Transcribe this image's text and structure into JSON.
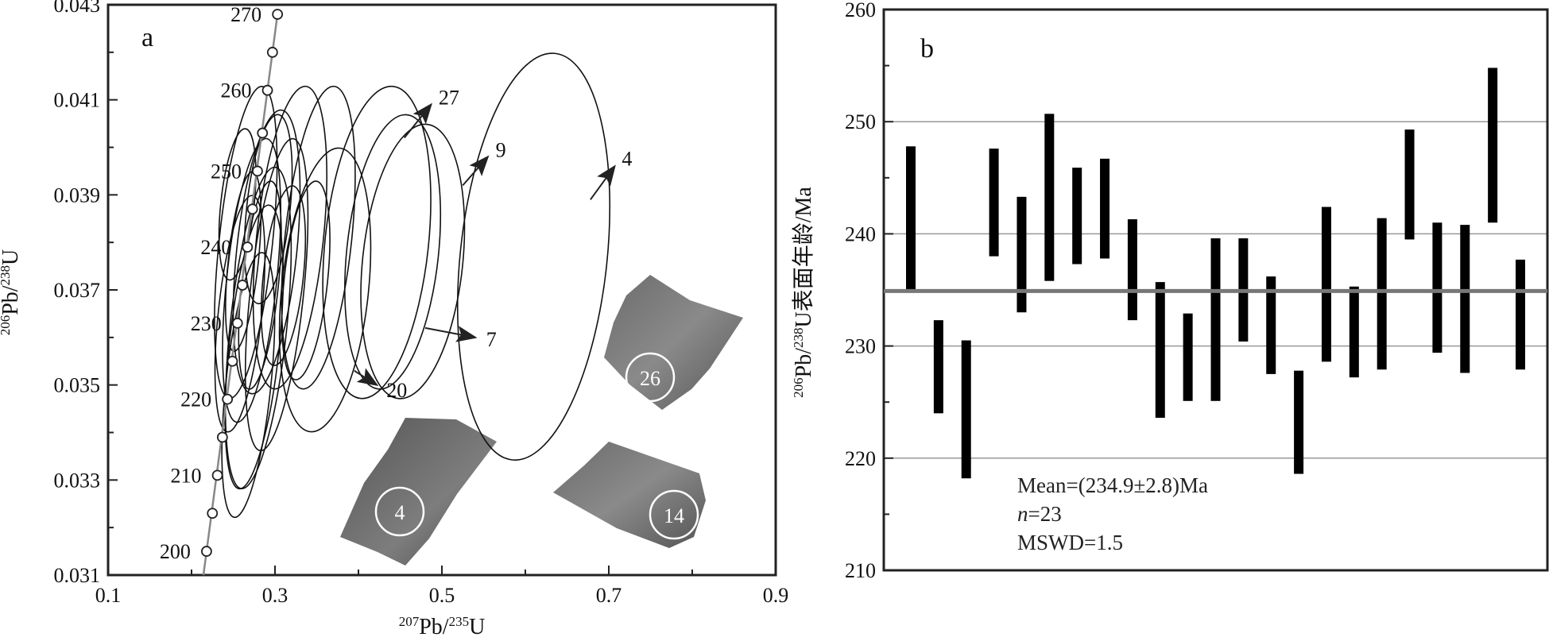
{
  "chart_data": [
    {
      "type": "scatter",
      "panel_letter": "a",
      "xlabel_prefix": "207",
      "xlabel_base": "Pb/",
      "xlabel_sup": "235",
      "xlabel_suffix": "U",
      "ylabel_prefix": "206",
      "ylabel_base": "Pb/",
      "ylabel_sup": "238",
      "ylabel_suffix": "U",
      "xlim": [
        0.1,
        0.9
      ],
      "ylim": [
        0.031,
        0.043
      ],
      "x_ticks": [
        "0.1",
        "0.3",
        "0.5",
        "0.7",
        "0.9"
      ],
      "y_ticks": [
        "0.031",
        "0.033",
        "0.035",
        "0.037",
        "0.039",
        "0.041",
        "0.043"
      ],
      "concordia_ages": [
        {
          "age": 200,
          "x": 0.218,
          "y": 0.0315,
          "label": "200"
        },
        {
          "age": 205,
          "x": 0.225,
          "y": 0.0323
        },
        {
          "age": 210,
          "x": 0.231,
          "y": 0.0331,
          "label": "210"
        },
        {
          "age": 215,
          "x": 0.237,
          "y": 0.0339
        },
        {
          "age": 220,
          "x": 0.243,
          "y": 0.0347,
          "label": "220"
        },
        {
          "age": 225,
          "x": 0.249,
          "y": 0.0355
        },
        {
          "age": 230,
          "x": 0.255,
          "y": 0.0363,
          "label": "230"
        },
        {
          "age": 235,
          "x": 0.261,
          "y": 0.0371
        },
        {
          "age": 240,
          "x": 0.267,
          "y": 0.0379,
          "label": "240"
        },
        {
          "age": 245,
          "x": 0.273,
          "y": 0.0387
        },
        {
          "age": 250,
          "x": 0.279,
          "y": 0.0395,
          "label": "250"
        },
        {
          "age": 255,
          "x": 0.285,
          "y": 0.0403
        },
        {
          "age": 260,
          "x": 0.291,
          "y": 0.0412,
          "label": "260"
        },
        {
          "age": 265,
          "x": 0.297,
          "y": 0.042
        },
        {
          "age": 270,
          "x": 0.303,
          "y": 0.0428,
          "label": "270"
        }
      ],
      "error_ellipses": [
        {
          "cx": 0.265,
          "cy": 0.038,
          "rx": 0.032,
          "ry": 0.0033
        },
        {
          "cx": 0.272,
          "cy": 0.0372,
          "rx": 0.03,
          "ry": 0.003
        },
        {
          "cx": 0.258,
          "cy": 0.0365,
          "rx": 0.026,
          "ry": 0.0025
        },
        {
          "cx": 0.275,
          "cy": 0.0358,
          "rx": 0.03,
          "ry": 0.003
        },
        {
          "cx": 0.268,
          "cy": 0.035,
          "rx": 0.027,
          "ry": 0.0028
        },
        {
          "cx": 0.28,
          "cy": 0.0362,
          "rx": 0.034,
          "ry": 0.0034
        },
        {
          "cx": 0.29,
          "cy": 0.0378,
          "rx": 0.036,
          "ry": 0.003
        },
        {
          "cx": 0.302,
          "cy": 0.0369,
          "rx": 0.032,
          "ry": 0.0033
        },
        {
          "cx": 0.318,
          "cy": 0.0381,
          "rx": 0.04,
          "ry": 0.0032
        },
        {
          "cx": 0.292,
          "cy": 0.0387,
          "rx": 0.026,
          "ry": 0.002
        },
        {
          "cx": 0.262,
          "cy": 0.0376,
          "rx": 0.018,
          "ry": 0.0019
        },
        {
          "cx": 0.282,
          "cy": 0.0371,
          "rx": 0.022,
          "ry": 0.0022
        },
        {
          "cx": 0.255,
          "cy": 0.0388,
          "rx": 0.02,
          "ry": 0.0016
        },
        {
          "cx": 0.31,
          "cy": 0.0373,
          "rx": 0.024,
          "ry": 0.0019
        },
        {
          "cx": 0.337,
          "cy": 0.0372,
          "rx": 0.026,
          "ry": 0.0021
        },
        {
          "cx": 0.352,
          "cy": 0.0381,
          "rx": 0.04,
          "ry": 0.0032
        },
        {
          "cx": 0.36,
          "cy": 0.037,
          "rx": 0.052,
          "ry": 0.003
        },
        {
          "cx": 0.422,
          "cy": 0.038,
          "rx": 0.062,
          "ry": 0.0033
        },
        {
          "cx": 0.441,
          "cy": 0.0378,
          "rx": 0.055,
          "ry": 0.0029
        },
        {
          "cx": 0.465,
          "cy": 0.0376,
          "rx": 0.06,
          "ry": 0.0029
        },
        {
          "cx": 0.61,
          "cy": 0.0377,
          "rx": 0.088,
          "ry": 0.0043
        }
      ],
      "arrows": [
        {
          "label": "27",
          "x1": 0.455,
          "y1": 0.0402,
          "x2": 0.487,
          "y2": 0.0409
        },
        {
          "label": "9",
          "x1": 0.525,
          "y1": 0.0392,
          "x2": 0.555,
          "y2": 0.0398
        },
        {
          "label": "4",
          "x1": 0.678,
          "y1": 0.0389,
          "x2": 0.707,
          "y2": 0.0396
        },
        {
          "label": "7",
          "x1": 0.48,
          "y1": 0.0362,
          "x2": 0.54,
          "y2": 0.036
        },
        {
          "label": "20",
          "x1": 0.395,
          "y1": 0.0353,
          "x2": 0.422,
          "y2": 0.035
        }
      ],
      "zircon_labels": [
        "26",
        "4",
        "14"
      ]
    },
    {
      "type": "bar",
      "panel_letter": "b",
      "ylabel_prefix": "206",
      "ylabel_base": "Pb/",
      "ylabel_sup": "238",
      "ylabel_suffix": "U表面年龄/Ma",
      "ylim": [
        210,
        260
      ],
      "y_ticks": [
        "210",
        "220",
        "230",
        "240",
        "250",
        "260"
      ],
      "mean_line": 234.9,
      "mean_text": "Mean=(234.9±2.8)Ma",
      "n_label": "n",
      "n_value": "=23",
      "mswd_text": "MSWD=1.5",
      "error_bars": [
        {
          "low": 235.0,
          "high": 247.8
        },
        {
          "low": 224.0,
          "high": 232.3
        },
        {
          "low": 218.2,
          "high": 230.5
        },
        {
          "low": 238.0,
          "high": 247.6
        },
        {
          "low": 233.0,
          "high": 243.3
        },
        {
          "low": 235.8,
          "high": 250.7
        },
        {
          "low": 237.3,
          "high": 245.9
        },
        {
          "low": 237.8,
          "high": 246.7
        },
        {
          "low": 232.3,
          "high": 241.3
        },
        {
          "low": 223.6,
          "high": 235.7
        },
        {
          "low": 225.1,
          "high": 232.9
        },
        {
          "low": 225.1,
          "high": 239.6
        },
        {
          "low": 230.4,
          "high": 239.6
        },
        {
          "low": 227.5,
          "high": 236.2
        },
        {
          "low": 218.6,
          "high": 227.8
        },
        {
          "low": 228.6,
          "high": 242.4
        },
        {
          "low": 227.2,
          "high": 235.3
        },
        {
          "low": 227.9,
          "high": 241.4
        },
        {
          "low": 239.5,
          "high": 249.3
        },
        {
          "low": 229.4,
          "high": 241.0
        },
        {
          "low": 227.6,
          "high": 240.8
        },
        {
          "low": 241.0,
          "high": 254.8
        },
        {
          "low": 227.9,
          "high": 237.7
        }
      ]
    }
  ]
}
